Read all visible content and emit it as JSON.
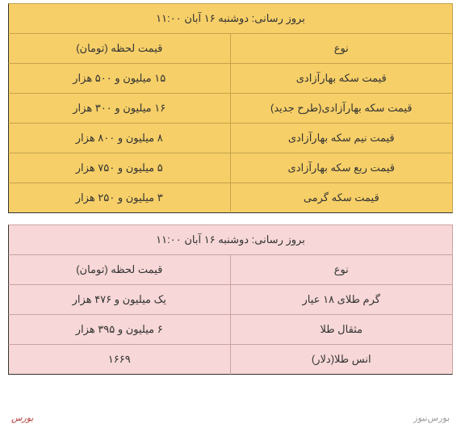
{
  "colors": {
    "table_a_bg": "#f6cf68",
    "table_a_border": "#c7a34a",
    "table_b_bg": "#f7d7d7",
    "table_b_border": "#caa3a3",
    "footer_text": "#9a9a9a",
    "logo_text": "#b33c3c"
  },
  "table_a": {
    "title": "بروز رسانی: دوشنبه ۱۶ آبان ۱۱:۰۰",
    "header_type": "نوع",
    "header_price": "قیمت لحظه (تومان)",
    "rows": [
      {
        "type": "قیمت سکه بهارآزادی",
        "price": "۱۵ میلیون و ۵۰۰ هزار"
      },
      {
        "type": "قیمت سکه بهارآزادی(طرح جدید)",
        "price": "۱۶ میلیون و ۳۰۰ هزار"
      },
      {
        "type": "قیمت نیم سکه بهارآزادی",
        "price": "۸ میلیون و ۸۰۰ هزار"
      },
      {
        "type": "قیمت ربع سکه بهارآزادی",
        "price": "۵ میلیون و ۷۵۰ هزار"
      },
      {
        "type": "قیمت سکه گرمی",
        "price": "۳ میلیون و ۲۵۰ هزار"
      }
    ]
  },
  "table_b": {
    "title": "بروز رسانی: دوشنبه ۱۶ آبان ۱۱:۰۰",
    "header_type": "نوع",
    "header_price": "قیمت لحظه (تومان)",
    "rows": [
      {
        "type": "گرم طلای ۱۸ عیار",
        "price": "یک میلیون و ۴۷۶  هزار"
      },
      {
        "type": "مثقال طلا",
        "price": "۶ میلیون و ۳۹۵ هزار"
      },
      {
        "type": "انس طلا(دلار)",
        "price": "۱۶۶۹"
      }
    ]
  },
  "footer": {
    "site": "بورس‌نیوز",
    "logo": "بورس"
  }
}
